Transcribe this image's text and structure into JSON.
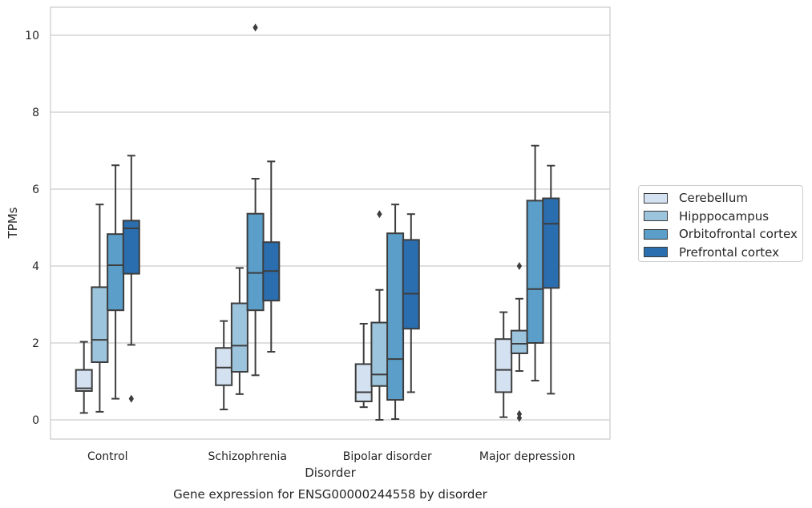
{
  "chart_data": {
    "type": "boxplot",
    "title": "Gene expression for ENSG00000244558 by disorder",
    "xlabel": "Disorder",
    "ylabel": "TPMs",
    "ylim": [
      -0.5,
      10.7
    ],
    "yticks": [
      0,
      2,
      4,
      6,
      8,
      10
    ],
    "grid": true,
    "legend_placement": "right",
    "categories": [
      "Control",
      "Schizophrenia",
      "Bipolar disorder",
      "Major depression"
    ],
    "series": [
      {
        "name": "Cerebellum",
        "color": "#d3e1f0",
        "boxes": [
          {
            "whisker_low": 0.18,
            "q1": 0.75,
            "median": 0.82,
            "q3": 1.3,
            "whisker_high": 2.03,
            "outliers": []
          },
          {
            "whisker_low": 0.27,
            "q1": 0.9,
            "median": 1.36,
            "q3": 1.87,
            "whisker_high": 2.57,
            "outliers": []
          },
          {
            "whisker_low": 0.33,
            "q1": 0.48,
            "median": 0.72,
            "q3": 1.45,
            "whisker_high": 2.5,
            "outliers": []
          },
          {
            "whisker_low": 0.07,
            "q1": 0.72,
            "median": 1.3,
            "q3": 2.1,
            "whisker_high": 2.8,
            "outliers": []
          }
        ]
      },
      {
        "name": "Hipppocampus",
        "color": "#9cc4dd",
        "boxes": [
          {
            "whisker_low": 0.21,
            "q1": 1.5,
            "median": 2.08,
            "q3": 3.45,
            "whisker_high": 5.6,
            "outliers": []
          },
          {
            "whisker_low": 0.67,
            "q1": 1.25,
            "median": 1.93,
            "q3": 3.03,
            "whisker_high": 3.95,
            "outliers": []
          },
          {
            "whisker_low": 0.0,
            "q1": 0.88,
            "median": 1.18,
            "q3": 2.53,
            "whisker_high": 3.38,
            "outliers": [
              5.35
            ]
          },
          {
            "whisker_low": 1.27,
            "q1": 1.73,
            "median": 1.98,
            "q3": 2.32,
            "whisker_high": 3.15,
            "outliers": [
              4.0,
              0.05,
              0.15
            ]
          }
        ]
      },
      {
        "name": "Orbitofrontal cortex",
        "color": "#5a9ec9",
        "boxes": [
          {
            "whisker_low": 0.55,
            "q1": 2.85,
            "median": 4.02,
            "q3": 4.83,
            "whisker_high": 6.62,
            "outliers": []
          },
          {
            "whisker_low": 1.16,
            "q1": 2.85,
            "median": 3.82,
            "q3": 5.36,
            "whisker_high": 6.27,
            "outliers": [
              10.2
            ]
          },
          {
            "whisker_low": 0.02,
            "q1": 0.52,
            "median": 1.58,
            "q3": 4.85,
            "whisker_high": 5.6,
            "outliers": []
          },
          {
            "whisker_low": 1.02,
            "q1": 2.0,
            "median": 3.4,
            "q3": 5.7,
            "whisker_high": 7.13,
            "outliers": []
          }
        ]
      },
      {
        "name": "Prefrontal cortex",
        "color": "#2b6eaf",
        "boxes": [
          {
            "whisker_low": 1.95,
            "q1": 3.8,
            "median": 4.98,
            "q3": 5.18,
            "whisker_high": 6.87,
            "outliers": [
              0.55
            ]
          },
          {
            "whisker_low": 1.77,
            "q1": 3.1,
            "median": 3.87,
            "q3": 4.62,
            "whisker_high": 6.72,
            "outliers": []
          },
          {
            "whisker_low": 0.72,
            "q1": 2.37,
            "median": 3.28,
            "q3": 4.68,
            "whisker_high": 5.35,
            "outliers": []
          },
          {
            "whisker_low": 0.68,
            "q1": 3.43,
            "median": 5.1,
            "q3": 5.76,
            "whisker_high": 6.61,
            "outliers": []
          }
        ]
      }
    ]
  }
}
